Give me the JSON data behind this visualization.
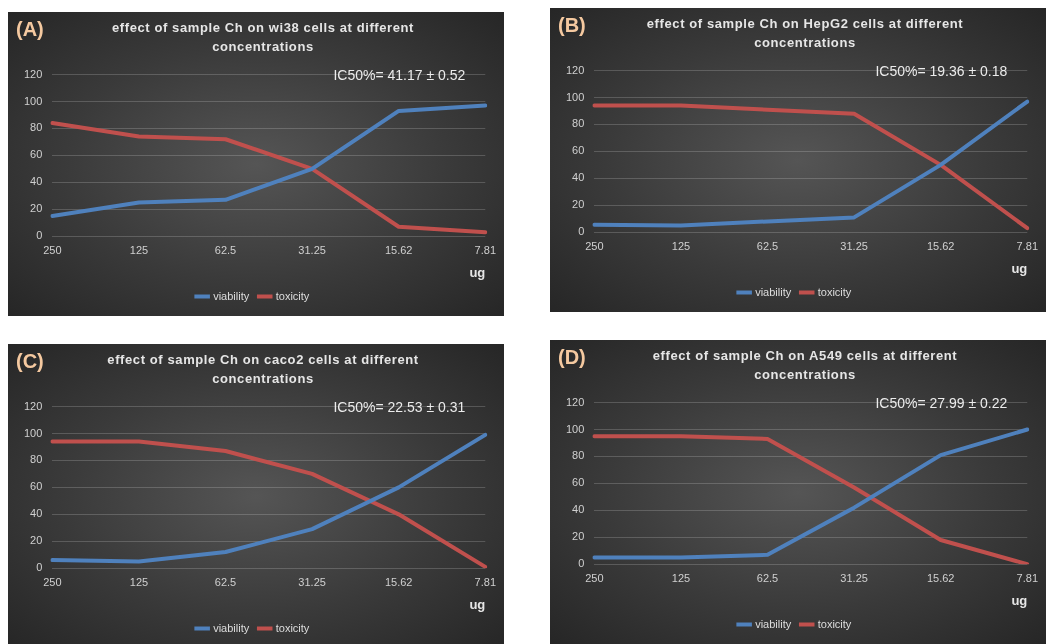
{
  "chart_data": [
    {
      "type": "line",
      "title": "effect of sample Ch on wi38 cells at different concentrations",
      "xlabel": "ug",
      "annotations": [
        "(A)",
        "IC50%= 41.17 ± 0.52"
      ],
      "categories": [
        "250",
        "125",
        "62.5",
        "31.25",
        "15.62",
        "7.81"
      ],
      "series": [
        {
          "name": "viability",
          "color": "#4f81bd",
          "values": [
            15,
            25,
            27,
            50,
            93,
            97
          ]
        },
        {
          "name": "toxicity",
          "color": "#c0504d",
          "values": [
            84,
            74,
            72,
            50,
            7,
            3
          ]
        }
      ],
      "ylim": [
        0,
        120
      ],
      "yticks": [
        0,
        20,
        40,
        60,
        80,
        100,
        120
      ],
      "grid": "y",
      "legend": "bottom",
      "marker": "none",
      "line_style": "solid"
    },
    {
      "type": "line",
      "title": "effect of sample Ch on HepG2 cells at different concentrations",
      "xlabel": "ug",
      "annotations": [
        "(B)",
        "IC50%= 19.36 ± 0.18"
      ],
      "categories": [
        "250",
        "125",
        "62.5",
        "31.25",
        "15.62",
        "7.81"
      ],
      "series": [
        {
          "name": "viability",
          "color": "#4f81bd",
          "values": [
            5.5,
            5,
            8,
            11,
            50,
            97
          ]
        },
        {
          "name": "toxicity",
          "color": "#c0504d",
          "values": [
            94,
            94,
            91,
            88,
            50,
            3
          ]
        }
      ],
      "ylim": [
        0,
        120
      ],
      "yticks": [
        0,
        20,
        40,
        60,
        80,
        100,
        120
      ],
      "grid": "y",
      "legend": "bottom",
      "marker": "none",
      "line_style": "solid"
    },
    {
      "type": "line",
      "title": "effect of sample Ch on caco2 cells at different concentrations",
      "xlabel": "ug",
      "annotations": [
        "(C)",
        "IC50%= 22.53 ± 0.31"
      ],
      "categories": [
        "250",
        "125",
        "62.5",
        "31.25",
        "15.62",
        "7.81"
      ],
      "series": [
        {
          "name": "viability",
          "color": "#4f81bd",
          "values": [
            6,
            5,
            12,
            29,
            60,
            99
          ]
        },
        {
          "name": "toxicity",
          "color": "#c0504d",
          "values": [
            94,
            94,
            87,
            70,
            40,
            1
          ]
        }
      ],
      "ylim": [
        0,
        120
      ],
      "yticks": [
        0,
        20,
        40,
        60,
        80,
        100,
        120
      ],
      "grid": "y",
      "legend": "bottom",
      "marker": "none",
      "line_style": "solid"
    },
    {
      "type": "line",
      "title": "effect of sample Ch on A549 cells at different concentrations",
      "xlabel": "ug",
      "annotations": [
        "(D)",
        "IC50%= 27.99 ± 0.22"
      ],
      "categories": [
        "250",
        "125",
        "62.5",
        "31.25",
        "15.62",
        "7.81"
      ],
      "series": [
        {
          "name": "viability",
          "color": "#4f81bd",
          "values": [
            5,
            5,
            7,
            42,
            81,
            100
          ]
        },
        {
          "name": "toxicity",
          "color": "#c0504d",
          "values": [
            95,
            95,
            93,
            57,
            18,
            0
          ]
        }
      ],
      "ylim": [
        0,
        120
      ],
      "yticks": [
        0,
        20,
        40,
        60,
        80,
        100,
        120
      ],
      "grid": "y",
      "legend": "bottom",
      "marker": "none",
      "line_style": "solid"
    }
  ]
}
